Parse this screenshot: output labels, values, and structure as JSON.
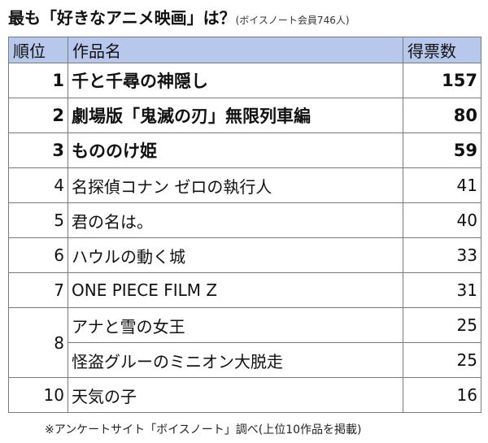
{
  "title": {
    "main": "最も「好きなアニメ映画」は？",
    "sub": "(ボイスノート会員746人)"
  },
  "table": {
    "headers": [
      "順位",
      "作品名",
      "得票数"
    ],
    "rows": [
      {
        "rank": "1",
        "title": "千と千尋の神隠し",
        "votes": "157",
        "bold": true
      },
      {
        "rank": "2",
        "title": "劇場版「鬼滅の刃」無限列車編",
        "votes": "80",
        "bold": true
      },
      {
        "rank": "3",
        "title": "もののけ姫",
        "votes": "59",
        "bold": true
      },
      {
        "rank": "4",
        "title": "名探偵コナン ゼロの執行人",
        "votes": "41",
        "bold": false
      },
      {
        "rank": "5",
        "title": "君の名は。",
        "votes": "40",
        "bold": false
      },
      {
        "rank": "6",
        "title": "ハウルの動く城",
        "votes": "33",
        "bold": false
      },
      {
        "rank": "7",
        "title": "ONE PIECE FILM Z",
        "votes": "31",
        "bold": false
      },
      {
        "rank": "8",
        "title": "アナと雪の女王",
        "votes": "25",
        "bold": false
      },
      {
        "rank": "",
        "title": "怪盗グルーのミニオン大脱走",
        "votes": "25",
        "bold": false
      },
      {
        "rank": "10",
        "title": "天気の子",
        "votes": "16",
        "bold": false
      }
    ]
  },
  "footnote": "※アンケートサイト「ボイスノート」調べ(上位10作品を掲載)",
  "colors": {
    "header_bg": "#b7c8ec",
    "border": "#7a7a7a"
  }
}
